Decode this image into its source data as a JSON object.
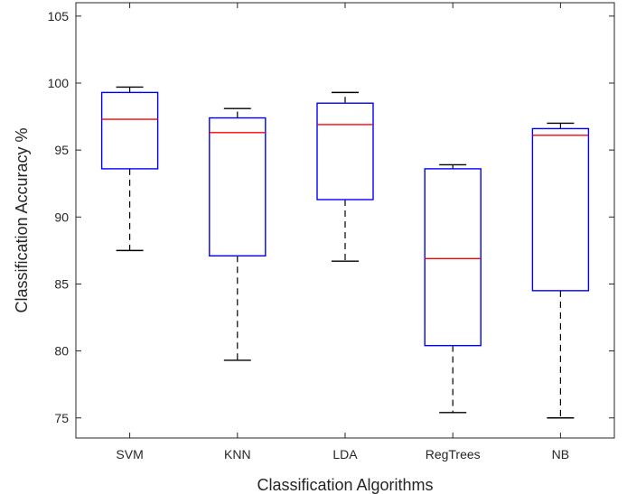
{
  "chart_data": {
    "type": "boxplot",
    "xlabel": "Classification Algorithms",
    "ylabel": "Classification Accuracy %",
    "ylim": [
      73.5,
      106
    ],
    "yticks": [
      75,
      80,
      85,
      90,
      95,
      100,
      105
    ],
    "yticklabels": [
      "75",
      "80",
      "85",
      "90",
      "95",
      "100",
      "105"
    ],
    "categories": [
      "SVM",
      "KNN",
      "LDA",
      "RegTrees",
      "NB"
    ],
    "boxes": [
      {
        "category": "SVM",
        "whisker_low": 87.5,
        "q1": 93.6,
        "median": 97.3,
        "q3": 99.3,
        "whisker_high": 99.7
      },
      {
        "category": "KNN",
        "whisker_low": 79.3,
        "q1": 87.1,
        "median": 96.3,
        "q3": 97.4,
        "whisker_high": 98.1
      },
      {
        "category": "LDA",
        "whisker_low": 86.7,
        "q1": 91.3,
        "median": 96.9,
        "q3": 98.5,
        "whisker_high": 99.3
      },
      {
        "category": "RegTrees",
        "whisker_low": 75.4,
        "q1": 80.4,
        "median": 86.9,
        "q3": 93.6,
        "whisker_high": 93.9
      },
      {
        "category": "NB",
        "whisker_low": 75.0,
        "q1": 84.5,
        "median": 96.1,
        "q3": 96.6,
        "whisker_high": 97.0
      }
    ],
    "colors": {
      "box": "#0000ff",
      "median": "#ff0000",
      "whisker": "#000000",
      "axes": "#262626"
    },
    "grid": false
  }
}
